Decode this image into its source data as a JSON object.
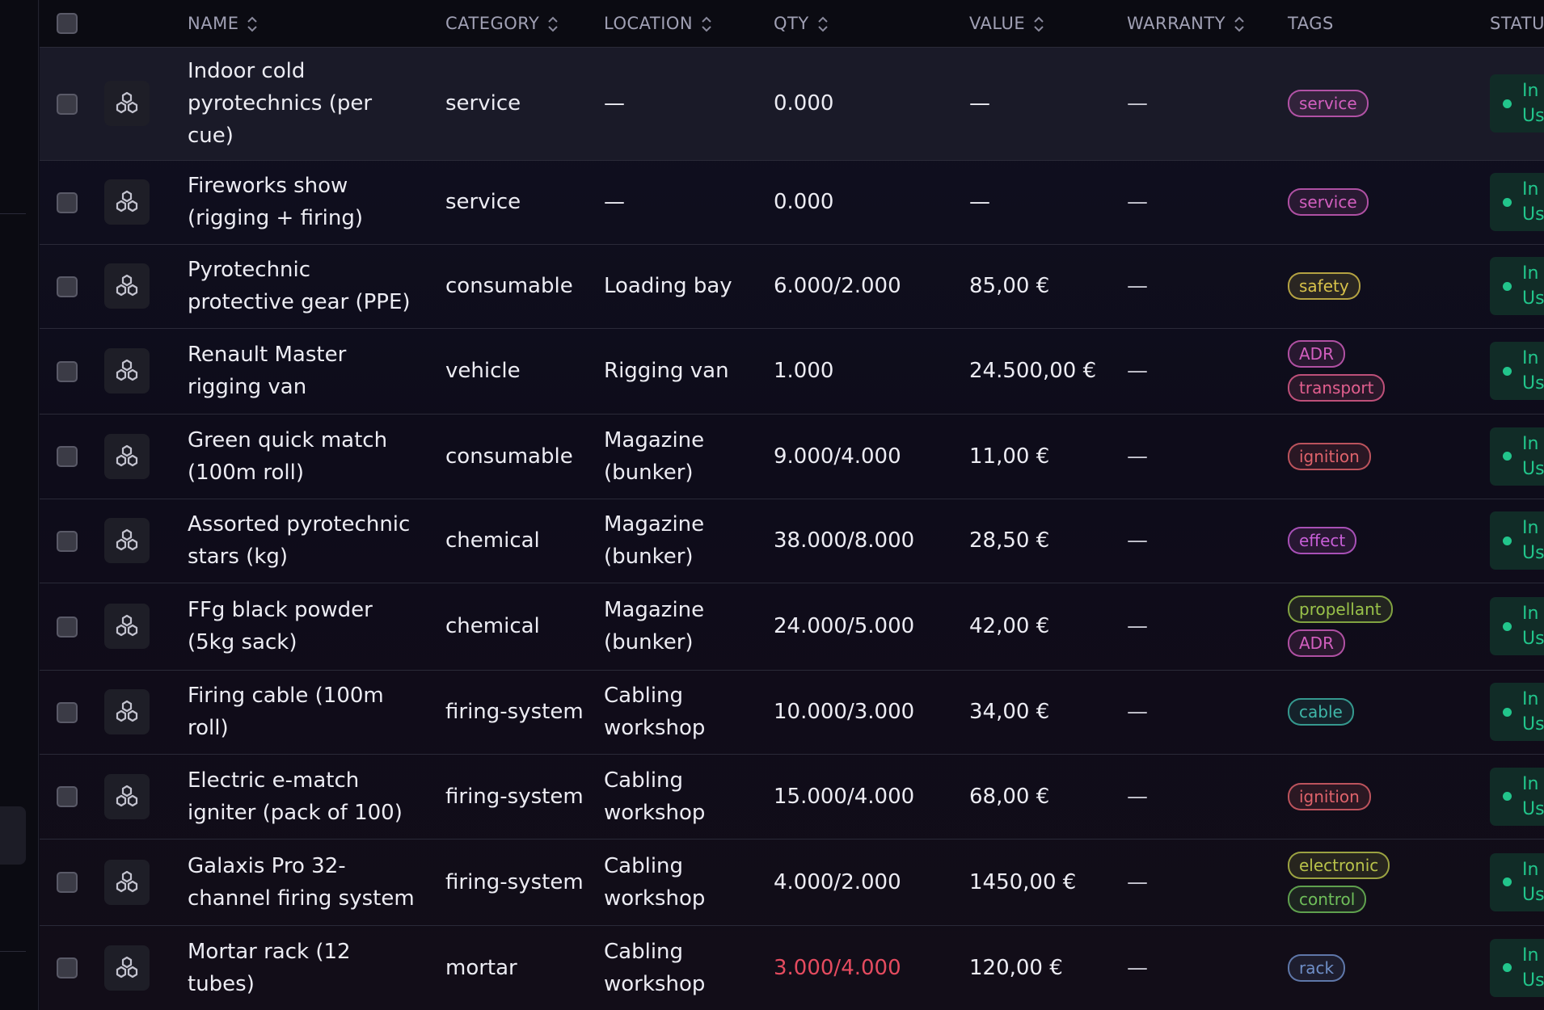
{
  "columns": {
    "name": "NAME",
    "category": "CATEGORY",
    "location": "LOCATION",
    "qty": "QTY",
    "value": "VALUE",
    "warranty": "WARRANTY",
    "tags": "TAGS",
    "status": "STATUS"
  },
  "colors": {
    "status_green": "#22c58b",
    "low_stock_red": "#e54b5f"
  },
  "rows": [
    {
      "name": "Indoor cold pyrotechnics (per cue)",
      "category": "service",
      "location": "—",
      "qty": "0.000",
      "qty_low": false,
      "value": "—",
      "warranty": "—",
      "tags": [
        {
          "label": "service",
          "color": "#d25fbf"
        }
      ],
      "status": "In Use",
      "icon": "hexagon-cluster-icon"
    },
    {
      "name": "Fireworks show (rigging + firing)",
      "category": "service",
      "location": "—",
      "qty": "0.000",
      "qty_low": false,
      "value": "—",
      "warranty": "—",
      "tags": [
        {
          "label": "service",
          "color": "#d25fbf"
        }
      ],
      "status": "In Use",
      "icon": "hexagon-cluster-icon"
    },
    {
      "name": "Pyrotechnic protective gear (PPE)",
      "category": "consumable",
      "location": "Loading bay",
      "qty": "6.000/2.000",
      "qty_low": false,
      "value": "85,00 €",
      "warranty": "—",
      "tags": [
        {
          "label": "safety",
          "color": "#d8c24a"
        }
      ],
      "status": "In Use",
      "icon": "hexagon-cluster-icon"
    },
    {
      "name": "Renault Master rigging van",
      "category": "vehicle",
      "location": "Rigging van",
      "qty": "1.000",
      "qty_low": false,
      "value": "24.500,00 €",
      "warranty": "—",
      "tags": [
        {
          "label": "ADR",
          "color": "#d25fbf"
        },
        {
          "label": "transport",
          "color": "#e25f8f"
        }
      ],
      "status": "In Use",
      "icon": "hexagon-cluster-icon"
    },
    {
      "name": "Green quick match (100m roll)",
      "category": "consumable",
      "location": "Magazine (bunker)",
      "qty": "9.000/4.000",
      "qty_low": false,
      "value": "11,00 €",
      "warranty": "—",
      "tags": [
        {
          "label": "ignition",
          "color": "#e0636b"
        }
      ],
      "status": "In Use",
      "icon": "hexagon-cluster-icon"
    },
    {
      "name": "Assorted pyrotechnic stars (kg)",
      "category": "chemical",
      "location": "Magazine (bunker)",
      "qty": "38.000/8.000",
      "qty_low": false,
      "value": "28,50 €",
      "warranty": "—",
      "tags": [
        {
          "label": "effect",
          "color": "#c85fd8"
        }
      ],
      "status": "In Use",
      "icon": "hexagon-cluster-icon"
    },
    {
      "name": "FFg black powder (5kg sack)",
      "category": "chemical",
      "location": "Magazine (bunker)",
      "qty": "24.000/5.000",
      "qty_low": false,
      "value": "42,00 €",
      "warranty": "—",
      "tags": [
        {
          "label": "propellant",
          "color": "#9ac24a"
        },
        {
          "label": "ADR",
          "color": "#d25fbf"
        }
      ],
      "status": "In Use",
      "icon": "hexagon-cluster-icon"
    },
    {
      "name": "Firing cable (100m roll)",
      "category": "firing-system",
      "location": "Cabling workshop",
      "qty": "10.000/3.000",
      "qty_low": false,
      "value": "34,00 €",
      "warranty": "—",
      "tags": [
        {
          "label": "cable",
          "color": "#3fb6a8"
        }
      ],
      "status": "In Use",
      "icon": "hexagon-cluster-icon"
    },
    {
      "name": "Electric e-match igniter (pack of 100)",
      "category": "firing-system",
      "location": "Cabling workshop",
      "qty": "15.000/4.000",
      "qty_low": false,
      "value": "68,00 €",
      "warranty": "—",
      "tags": [
        {
          "label": "ignition",
          "color": "#e0636b"
        }
      ],
      "status": "In Use",
      "icon": "hexagon-cluster-icon"
    },
    {
      "name": "Galaxis Pro 32-channel firing system",
      "category": "firing-system",
      "location": "Cabling workshop",
      "qty": "4.000/2.000",
      "qty_low": false,
      "value": "1450,00 €",
      "warranty": "—",
      "tags": [
        {
          "label": "electronic",
          "color": "#b8c24a"
        },
        {
          "label": "control",
          "color": "#6fbf5a"
        }
      ],
      "status": "In Use",
      "icon": "hexagon-cluster-icon"
    },
    {
      "name": "Mortar rack (12 tubes)",
      "category": "mortar",
      "location": "Cabling workshop",
      "qty": "3.000/4.000",
      "qty_low": true,
      "value": "120,00 €",
      "warranty": "—",
      "tags": [
        {
          "label": "rack",
          "color": "#6f8fc8"
        }
      ],
      "status": "In Use",
      "icon": "hexagon-cluster-icon"
    }
  ]
}
